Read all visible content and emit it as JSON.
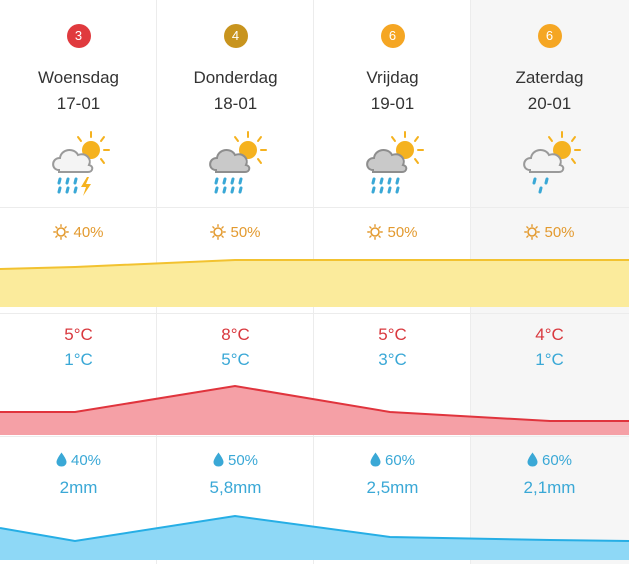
{
  "colors": {
    "badge_red": "#e03a3e",
    "badge_brown": "#c8941e",
    "badge_orange": "#f5a623",
    "sun_text": "#e39a2f",
    "temp_max": "#d9383e",
    "temp_min": "#3aa8d6",
    "rain": "#3aa8d6",
    "sun_fill": "#fbeb9c",
    "sun_line": "#f2c230",
    "temp_fill": "#f5a0a6",
    "temp_line": "#e0343d",
    "rain_fill": "#8ed8f6",
    "rain_line": "#26aee5"
  },
  "days": [
    {
      "badge": "3",
      "badge_color": "#e03a3e",
      "name": "Woensdag",
      "date": "17-01",
      "icon": "cloud-sun-rain-thunder-icon",
      "sun_pct": "40%",
      "temp_max": "5°C",
      "temp_min": "1°C",
      "rain_pct": "40%",
      "rain_mm": "2mm"
    },
    {
      "badge": "4",
      "badge_color": "#c8941e",
      "name": "Donderdag",
      "date": "18-01",
      "icon": "cloud-sun-heavy-rain-icon",
      "sun_pct": "50%",
      "temp_max": "8°C",
      "temp_min": "5°C",
      "rain_pct": "50%",
      "rain_mm": "5,8mm"
    },
    {
      "badge": "6",
      "badge_color": "#f5a623",
      "name": "Vrijdag",
      "date": "19-01",
      "icon": "cloud-sun-heavy-rain-icon",
      "sun_pct": "50%",
      "temp_max": "5°C",
      "temp_min": "3°C",
      "rain_pct": "60%",
      "rain_mm": "2,5mm"
    },
    {
      "badge": "6",
      "badge_color": "#f5a623",
      "name": "Zaterdag",
      "date": "20-01",
      "icon": "cloud-sun-light-rain-icon",
      "sun_pct": "50%",
      "temp_max": "4°C",
      "temp_min": "1°C",
      "rain_pct": "60%",
      "rain_mm": "2,1mm"
    }
  ]
}
